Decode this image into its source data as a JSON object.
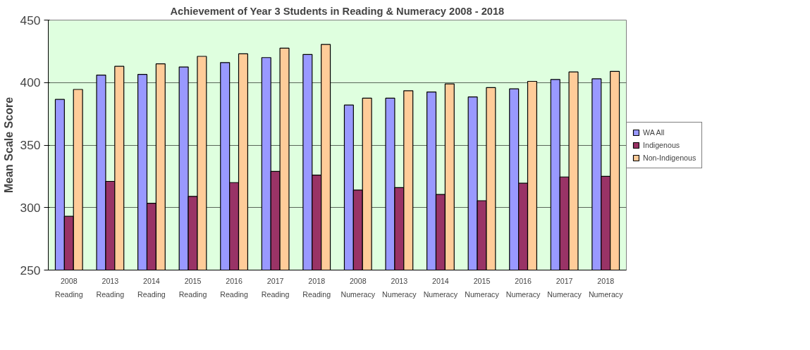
{
  "chart_data": {
    "type": "bar",
    "title": "Achievement of Year 3 Students in Reading & Numeracy 2008 - 2018",
    "ylabel": "Mean Scale Score",
    "categories": [
      "2008\nReading",
      "2013\nReading",
      "2014\nReading",
      "2015\nReading",
      "2016\nReading",
      "2017\nReading",
      "2018\nReading",
      "2008\nNumeracy",
      "2013\nNumeracy",
      "2014\nNumeracy",
      "2015\nNumeracy",
      "2016\nNumeracy",
      "2017\nNumeracy",
      "2018\nNumeracy"
    ],
    "series": [
      {
        "name": "WA All",
        "color": "#9999ff",
        "values": [
          386.5,
          406,
          406.5,
          412.5,
          416,
          420,
          422.5,
          382,
          387.5,
          392.5,
          388.5,
          395,
          402.5,
          403
        ]
      },
      {
        "name": "Indigenous",
        "color": "#993366",
        "values": [
          293,
          321,
          303.5,
          309,
          320,
          329,
          326,
          314,
          316,
          310.5,
          305.5,
          319.5,
          324.5,
          325
        ]
      },
      {
        "name": "Non-Indigenous",
        "color": "#ffcc99",
        "values": [
          394.5,
          413,
          415,
          421,
          423,
          427.5,
          430.5,
          387.5,
          393.5,
          399,
          396,
          401,
          408.5,
          409
        ]
      }
    ],
    "ylim": [
      250,
      450
    ],
    "yticks": [
      250,
      300,
      350,
      400,
      450
    ],
    "grid": "y",
    "legend": "right"
  }
}
